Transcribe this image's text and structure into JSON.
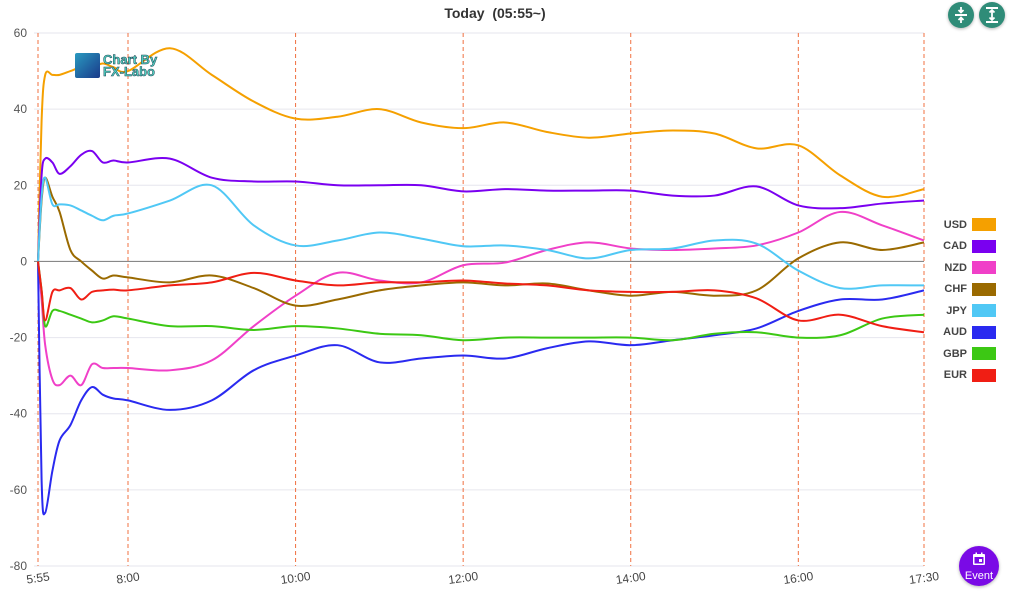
{
  "header": {
    "title": "Today  (05:55~)",
    "event_label": "Event"
  },
  "icons": {
    "compress": "compress-vertical-icon",
    "expand": "expand-vertical-icon",
    "event": "calendar-icon"
  },
  "logo": {
    "text_line1": "Chart By",
    "text_line2": "FX-Labo"
  },
  "chart_data": {
    "type": "line",
    "title": "Today  (05:55~)",
    "xlabel": "",
    "ylabel": "",
    "ylim": [
      -80,
      60
    ],
    "yticks": [
      60,
      40,
      20,
      0,
      -20,
      -40,
      -60,
      -80
    ],
    "xticks": [
      "5:55",
      "8:00",
      "10:00",
      "12:00",
      "14:00",
      "16:00",
      "17:30"
    ],
    "grid": true,
    "legend_position": "right",
    "x": [
      "5:55",
      "6:00",
      "6:05",
      "6:15",
      "6:25",
      "6:40",
      "6:55",
      "7:10",
      "7:25",
      "7:40",
      "8:00",
      "8:30",
      "9:00",
      "9:30",
      "10:00",
      "10:30",
      "11:00",
      "11:30",
      "12:00",
      "12:30",
      "13:00",
      "13:30",
      "14:00",
      "14:30",
      "15:00",
      "15:30",
      "16:00",
      "16:30",
      "17:00",
      "17:30"
    ],
    "series": [
      {
        "name": "USD",
        "color": "#f5a000",
        "values": [
          0,
          37,
          49,
          49,
          49,
          50,
          51,
          51,
          52,
          51,
          50,
          56,
          49,
          42,
          37.5,
          38,
          40,
          36.5,
          35,
          36.5,
          34,
          32.5,
          33.6,
          34.4,
          33.6,
          29.7,
          30.5,
          22.6,
          17,
          19
        ]
      },
      {
        "name": "CAD",
        "color": "#7a00f0",
        "values": [
          0,
          22.6,
          27,
          26,
          23,
          25,
          28,
          29,
          26,
          26.5,
          26,
          27,
          22,
          21,
          21,
          20,
          20,
          20,
          18.4,
          19,
          18.6,
          18.6,
          18.6,
          17.3,
          17.3,
          19.7,
          14.7,
          14,
          15.2,
          16
        ]
      },
      {
        "name": "NZD",
        "color": "#f040c8",
        "values": [
          0,
          -10,
          -22,
          -31,
          -32.5,
          -30,
          -32.5,
          -27,
          -28,
          -28,
          -28,
          -28.6,
          -26,
          -17,
          -9,
          -3,
          -5,
          -5.5,
          -1,
          -0.3,
          3,
          5,
          3.4,
          3,
          3.4,
          4.2,
          7.6,
          13,
          9.5,
          5.5
        ]
      },
      {
        "name": "CHF",
        "color": "#9a6a00",
        "values": [
          0,
          16,
          22,
          17,
          13,
          3,
          0,
          -2.4,
          -4.5,
          -3.7,
          -4.2,
          -5.5,
          -3.7,
          -7,
          -11.6,
          -10,
          -7.6,
          -6.3,
          -5.5,
          -6.3,
          -5.8,
          -7.6,
          -9,
          -8,
          -9,
          -7.6,
          0.8,
          5,
          3,
          5
        ]
      },
      {
        "name": "JPY",
        "color": "#50c8f5",
        "values": [
          0,
          17,
          22,
          15,
          15,
          14.7,
          13.4,
          12,
          10.8,
          12,
          12.6,
          16,
          20,
          9.5,
          4.2,
          5.5,
          7.6,
          6,
          4,
          4.2,
          3,
          0.8,
          3,
          3.4,
          5.5,
          4.7,
          -2.4,
          -7,
          -6.3,
          -6.3
        ]
      },
      {
        "name": "AUD",
        "color": "#2a2af0",
        "values": [
          0,
          -57.5,
          -66,
          -55,
          -47,
          -43,
          -36.5,
          -33,
          -35,
          -36,
          -36.5,
          -39,
          -36.5,
          -28.6,
          -24.7,
          -22,
          -26.5,
          -25.5,
          -24.7,
          -25.5,
          -22.8,
          -21,
          -22,
          -20.7,
          -19.4,
          -17.6,
          -13,
          -10,
          -10,
          -7.6
        ]
      },
      {
        "name": "GBP",
        "color": "#3cc814",
        "values": [
          0,
          -7.6,
          -17,
          -13,
          -13,
          -14,
          -15,
          -16,
          -15.5,
          -14.4,
          -15,
          -17,
          -17,
          -18,
          -17,
          -17.6,
          -19,
          -19.4,
          -20.7,
          -20,
          -20,
          -20,
          -20,
          -20.7,
          -19,
          -18.6,
          -20,
          -19.4,
          -15,
          -14
        ]
      },
      {
        "name": "EUR",
        "color": "#f01e14",
        "values": [
          0,
          -7.6,
          -15.5,
          -8,
          -7.6,
          -7,
          -10,
          -8,
          -7.6,
          -7.4,
          -7.6,
          -6.3,
          -5.5,
          -3,
          -5,
          -6.3,
          -5.5,
          -5.5,
          -5,
          -5.8,
          -6.3,
          -7.6,
          -8,
          -8,
          -7.6,
          -9.7,
          -15.5,
          -14,
          -17,
          -18.6
        ]
      }
    ]
  }
}
